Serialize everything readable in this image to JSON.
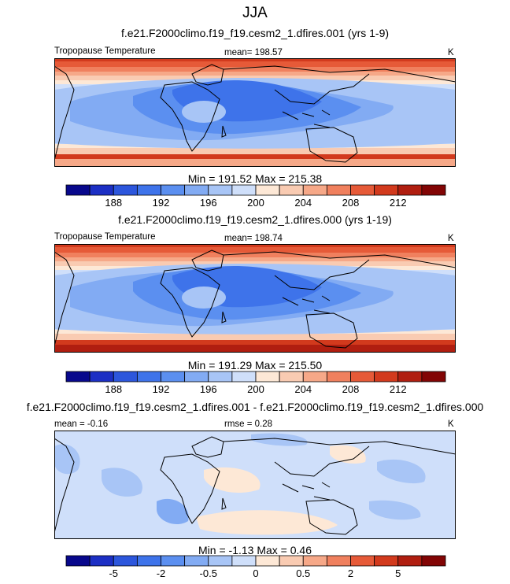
{
  "title": "JJA",
  "panels": [
    {
      "subtitle": "f.e21.F2000climo.f19_f19.cesm2_1.dfires.001 (yrs 1-9)",
      "left_label": "Tropopause Temperature",
      "center_label": "mean= 198.57",
      "units": "K",
      "stats": "Min = 191.52 Max = 215.38"
    },
    {
      "subtitle": "f.e21.F2000climo.f19_f19.cesm2_1.dfires.000 (yrs 1-19)",
      "left_label": "Tropopause Temperature",
      "center_label": "mean= 198.74",
      "units": "K",
      "stats": "Min = 191.29 Max = 215.50"
    },
    {
      "subtitle": "f.e21.F2000climo.f19_f19.cesm2_1.dfires.001 - f.e21.F2000climo.f19_f19.cesm2_1.dfires.000",
      "left_label": "mean =  -0.16",
      "center_label": "rmse =   0.28",
      "units": "K",
      "stats": "Min =  -1.13 Max =   0.46"
    }
  ],
  "colorbars": [
    {
      "colors": [
        "#08088c",
        "#1c2fc4",
        "#2c56dc",
        "#3e73ea",
        "#5b8ff0",
        "#82abf3",
        "#a8c5f6",
        "#cfdffa",
        "#fde8d6",
        "#f9cbb2",
        "#f6a888",
        "#f0805e",
        "#e65a38",
        "#d23a1d",
        "#b01e10",
        "#820505"
      ],
      "tick_labels": [
        "188",
        "192",
        "196",
        "200",
        "204",
        "208",
        "212"
      ]
    },
    {
      "colors": [
        "#08088c",
        "#1c2fc4",
        "#2c56dc",
        "#3e73ea",
        "#5b8ff0",
        "#82abf3",
        "#a8c5f6",
        "#cfdffa",
        "#fde8d6",
        "#f9cbb2",
        "#f6a888",
        "#f0805e",
        "#e65a38",
        "#d23a1d",
        "#b01e10",
        "#820505"
      ],
      "tick_labels": [
        "188",
        "192",
        "196",
        "200",
        "204",
        "208",
        "212"
      ]
    },
    {
      "colors": [
        "#08088c",
        "#1c2fc4",
        "#2c56dc",
        "#3e73ea",
        "#5b8ff0",
        "#82abf3",
        "#a8c5f6",
        "#cfdffa",
        "#fde8d6",
        "#f9cbb2",
        "#f6a888",
        "#f0805e",
        "#e65a38",
        "#d23a1d",
        "#b01e10",
        "#820505"
      ],
      "tick_labels": [
        "-5",
        "-2",
        "-0.5",
        "0",
        "0.5",
        "2",
        "5"
      ]
    }
  ],
  "chart_data": [
    {
      "type": "heatmap",
      "units": "K",
      "mean": 198.57,
      "min": 191.52,
      "max": 215.38,
      "levels": [
        186,
        188,
        190,
        192,
        194,
        196,
        198,
        200,
        202,
        204,
        206,
        208,
        210,
        212,
        214
      ]
    },
    {
      "type": "heatmap",
      "units": "K",
      "mean": 198.74,
      "min": 191.29,
      "max": 215.5,
      "levels": [
        186,
        188,
        190,
        192,
        194,
        196,
        198,
        200,
        202,
        204,
        206,
        208,
        210,
        212,
        214
      ]
    },
    {
      "type": "heatmap",
      "units": "K",
      "mean": -0.16,
      "rmse": 0.28,
      "min": -1.13,
      "max": 0.46,
      "levels": [
        -8,
        -5,
        -3,
        -2,
        -1,
        -0.5,
        -0.25,
        0,
        0.25,
        0.5,
        1,
        2,
        3,
        5,
        8
      ]
    }
  ]
}
